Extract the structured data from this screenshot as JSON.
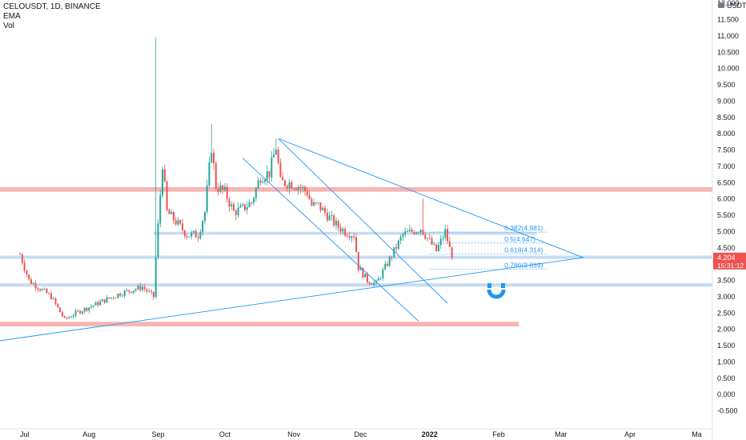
{
  "legend": {
    "symbol": "CELOUSDT, 1D, BINANCE",
    "indicator_1": "EMA",
    "indicator_2": "Vol"
  },
  "price_scale": {
    "currency": "USDT",
    "currency_icon": "lock-icon"
  },
  "price_label": {
    "value": "4.204",
    "countdown": "15:31:12",
    "color": "#ef5350"
  },
  "colors": {
    "up": "#26a69a",
    "down": "#ef5350",
    "trendline": "#2196f3",
    "resistance_zone": "#f7a7a7",
    "support_zone": "#bcd6f2"
  },
  "chart_data": {
    "type": "candlestick",
    "title": "CELOUSDT, 1D, BINANCE",
    "xlabel": "",
    "ylabel": "",
    "y_ticks": [
      "12.000",
      "11.500",
      "11.000",
      "10.500",
      "10.000",
      "9.500",
      "9.000",
      "8.500",
      "8.000",
      "7.500",
      "7.000",
      "6.500",
      "6.000",
      "5.500",
      "5.000",
      "4.500",
      "4.000",
      "3.500",
      "3.000",
      "2.500",
      "2.000",
      "1.500",
      "1.000",
      "0.500",
      "0.000",
      "-0.500"
    ],
    "ylim": [
      -0.6,
      12.4
    ],
    "x_ticks": [
      {
        "label": "Jul",
        "day": 0
      },
      {
        "label": "Aug",
        "day": 31
      },
      {
        "label": "Sep",
        "day": 62
      },
      {
        "label": "Oct",
        "day": 92
      },
      {
        "label": "Nov",
        "day": 123
      },
      {
        "label": "Dec",
        "day": 153
      },
      {
        "label": "2022",
        "day": 184
      },
      {
        "label": "Feb",
        "day": 215
      },
      {
        "label": "Mar",
        "day": 243
      },
      {
        "label": "Apr",
        "day": 274
      },
      {
        "label": "Ma",
        "day": 304
      }
    ],
    "xlim": [
      -9,
      311
    ],
    "grid": false,
    "keyframes": [
      [
        0,
        4.3
      ],
      [
        4,
        3.5
      ],
      [
        8,
        3.3
      ],
      [
        14,
        3.0
      ],
      [
        20,
        2.3
      ],
      [
        25,
        2.5
      ],
      [
        35,
        2.8
      ],
      [
        45,
        3.1
      ],
      [
        55,
        3.3
      ],
      [
        60,
        3.0
      ],
      [
        61,
        4.2
      ],
      [
        64,
        7.1
      ],
      [
        66,
        5.6
      ],
      [
        70,
        5.3
      ],
      [
        75,
        4.9
      ],
      [
        80,
        4.9
      ],
      [
        83,
        5.6
      ],
      [
        86,
        7.6
      ],
      [
        88,
        6.4
      ],
      [
        92,
        6.2
      ],
      [
        96,
        5.6
      ],
      [
        100,
        5.7
      ],
      [
        104,
        5.9
      ],
      [
        108,
        6.7
      ],
      [
        112,
        6.8
      ],
      [
        115,
        7.6
      ],
      [
        117,
        6.5
      ],
      [
        121,
        6.5
      ],
      [
        125,
        6.4
      ],
      [
        129,
        6.2
      ],
      [
        131,
        5.8
      ],
      [
        134,
        5.8
      ],
      [
        138,
        5.5
      ],
      [
        142,
        5.2
      ],
      [
        146,
        5.0
      ],
      [
        150,
        4.9
      ],
      [
        152,
        3.9
      ],
      [
        156,
        3.5
      ],
      [
        160,
        3.4
      ],
      [
        164,
        3.9
      ],
      [
        168,
        4.4
      ],
      [
        172,
        4.9
      ],
      [
        176,
        5.0
      ],
      [
        180,
        5.1
      ],
      [
        184,
        4.7
      ],
      [
        187,
        4.4
      ],
      [
        191,
        5.0
      ],
      [
        194,
        4.2
      ]
    ],
    "spikes": [
      {
        "day": 61,
        "high": 10.95
      },
      {
        "day": 86,
        "high": 8.3
      },
      {
        "day": 115,
        "high": 7.85
      },
      {
        "day": 181,
        "high": 6.0
      }
    ],
    "last_price": 4.204,
    "zones": [
      {
        "kind": "resistance",
        "low": 6.22,
        "high": 6.36,
        "from_day": -9,
        "to_day": 311
      },
      {
        "kind": "resistance",
        "low": 2.09,
        "high": 2.23,
        "from_day": -9,
        "to_day": 224
      },
      {
        "kind": "support",
        "low": 4.9,
        "high": 4.99,
        "from_day": 60,
        "to_day": 232
      },
      {
        "kind": "support",
        "low": 4.16,
        "high": 4.26,
        "from_day": -9,
        "to_day": 311
      },
      {
        "kind": "support",
        "low": 3.31,
        "high": 3.41,
        "from_day": -9,
        "to_day": 311
      }
    ],
    "fib_levels": [
      {
        "label": "0.382(4.981)",
        "value": 4.981
      },
      {
        "label": "0.5(4.647)",
        "value": 4.647
      },
      {
        "label": "0.618(4.314)",
        "value": 4.314
      },
      {
        "label": "0.786(3.839)",
        "value": 3.839
      }
    ],
    "fib_range": {
      "from_day": 184,
      "to_day": 237
    },
    "trendlines": [
      {
        "name": "wedge-upper",
        "p1": [
          116,
          7.85
        ],
        "p2": [
          253,
          4.2
        ]
      },
      {
        "name": "wedge-lower",
        "p1": [
          -9,
          1.65
        ],
        "p2": [
          253,
          4.2
        ]
      },
      {
        "name": "channel-upper",
        "p1": [
          116,
          7.85
        ],
        "p2": [
          192,
          2.8
        ]
      },
      {
        "name": "channel-lower",
        "p1": [
          100,
          7.25
        ],
        "p2": [
          179,
          2.25
        ]
      }
    ]
  }
}
